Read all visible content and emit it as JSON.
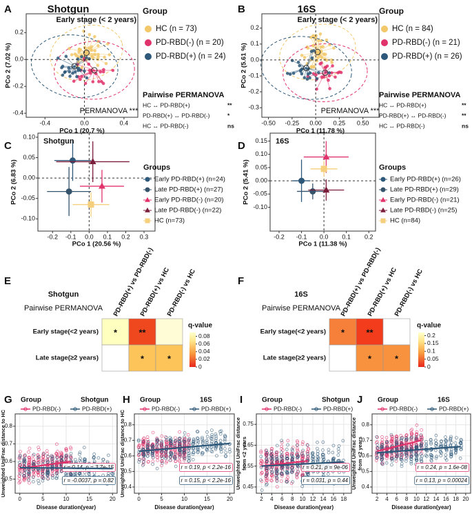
{
  "pcoa": [
    {
      "letter": "A",
      "title": "Shotgun",
      "subtitle": "Early stage (< 2 years)",
      "xlabel": "PCo 1 (20.7 %)",
      "ylabel": "PCo 2 (7.02 %)",
      "xlim": [
        -0.59,
        0.54
      ],
      "ylim": [
        -0.43,
        0.34
      ],
      "xticks": [
        -0.4,
        {
          "value": 0,
          "label": "0.0"
        },
        0.4
      ],
      "yticks": [
        0.2,
        {
          "value": 0,
          "label": "0.0"
        },
        -0.2,
        -0.4
      ],
      "legend_title": "Group",
      "groups": [
        {
          "name": "HC (n = 73)",
          "color": "#f2c86b"
        },
        {
          "name": "PD-RBD(-) (n = 20)",
          "color": "#e0336b"
        },
        {
          "name": "PD-RBD(+) (n = 24)",
          "color": "#2d5879"
        }
      ],
      "permanova": "PERMANOVA ***",
      "pairwise_title": "Pairwise PERMANOVA",
      "pairwise": [
        {
          "pair": "HC ↔ PD-RBD(+)",
          "sig": "**"
        },
        {
          "pair": "PD-RBD(+) ↔ PD-RBD(-)",
          "sig": "*"
        },
        {
          "pair": "HC ↔ PD-RBD(-)",
          "sig": "ns"
        }
      ]
    },
    {
      "letter": "B",
      "title": "16S",
      "subtitle": "Early stage (< 2 years)",
      "xlabel": "PCo 1 (11.78 %)",
      "ylabel": "PCo 2 (5.61 %)",
      "xlim": [
        -0.57,
        0.67
      ],
      "ylim": [
        -0.36,
        0.29
      ],
      "xticks": [
        {
          "value": -0.5,
          "label": "-0.50"
        },
        -0.25,
        {
          "value": 0,
          "label": "0.00"
        },
        0.25,
        {
          "value": 0.5,
          "label": "0.50"
        }
      ],
      "yticks": [
        0.2,
        0.1,
        {
          "value": 0,
          "label": "0.0"
        },
        -0.1,
        -0.2,
        -0.3
      ],
      "legend_title": "Group",
      "groups": [
        {
          "name": "HC (n = 84)",
          "color": "#f2c86b"
        },
        {
          "name": "PD-RBD(-) (n = 21)",
          "color": "#e0336b"
        },
        {
          "name": "PD-RBD(+) (n = 26)",
          "color": "#2d5879"
        }
      ],
      "permanova": "PERMANOVA ***",
      "pairwise_title": "Pairwise PERMANOVA",
      "pairwise": [
        {
          "pair": "HC ↔ PD-RBD(+)",
          "sig": "**"
        },
        {
          "pair": "PD-RBD(+) ↔ PD-RBD(-)",
          "sig": "**"
        },
        {
          "pair": "HC ↔ PD-RBD(-)",
          "sig": "ns"
        }
      ]
    }
  ],
  "centroids": [
    {
      "letter": "C",
      "title": "Shotgun",
      "xlabel": "PCo 1 (20.56 %)",
      "ylabel": "PCo 2 (6.83 %)",
      "xlim": [
        -0.28,
        0.36
      ],
      "ylim": [
        -0.13,
        0.11
      ],
      "xticks": [
        -0.2,
        -0.1,
        {
          "value": 0,
          "label": "0.0"
        },
        0.1,
        0.2,
        0.3
      ],
      "yticks": [
        {
          "value": 0.1,
          "label": "0.10"
        },
        0.05,
        {
          "value": 0,
          "label": "0.00"
        },
        -0.05,
        {
          "value": -0.1,
          "label": "-0.10"
        }
      ],
      "legend_title": "Groups",
      "series": [
        {
          "name": "Early PD-RBD(+) (n=24)",
          "color": "#2d5879",
          "shape": "circle",
          "x": -0.09,
          "y": 0.043,
          "xerr": 0.1,
          "yerr": 0.05
        },
        {
          "name": "Late PD-RBD(+) (n=27)",
          "color": "#35536b",
          "shape": "circle",
          "x": -0.11,
          "y": -0.033,
          "xerr": 0.12,
          "yerr": 0.06
        },
        {
          "name": "Early PD-RBD(-) (n=20)",
          "color": "#e0336b",
          "shape": "triangle",
          "x": 0.07,
          "y": -0.02,
          "xerr": 0.12,
          "yerr": 0.04
        },
        {
          "name": "Late PD-RBD(-) (n=22)",
          "color": "#7b1e3c",
          "shape": "triangle",
          "x": 0.02,
          "y": 0.04,
          "xerr": 0.2,
          "yerr": 0.05
        },
        {
          "name": "HC (n=73)",
          "color": "#f5cf7c",
          "shape": "square",
          "x": 0.01,
          "y": -0.065,
          "xerr": 0.1,
          "yerr": 0.03
        }
      ]
    },
    {
      "letter": "D",
      "title": "16S",
      "xlabel": "PCo 1 (11.38 %)",
      "ylabel": "PCo 2 (5.41 %)",
      "xlim": [
        -0.24,
        0.23
      ],
      "ylim": [
        -0.19,
        0.18
      ],
      "xticks": [
        -0.2,
        -0.1,
        {
          "value": 0,
          "label": "0.0"
        },
        0.1,
        0.2
      ],
      "yticks": [
        0.15,
        {
          "value": 0.1,
          "label": "0.10"
        },
        0.05,
        {
          "value": 0,
          "label": "0.00"
        },
        -0.05,
        {
          "value": -0.1,
          "label": "-0.10"
        }
      ],
      "legend_title": "Groups",
      "series": [
        {
          "name": "Early PD-RBD(+) (n=26)",
          "color": "#2d5879",
          "shape": "circle",
          "x": -0.1,
          "y": 0.0,
          "xerr": 0.04,
          "yerr": 0.08
        },
        {
          "name": "Late PD-RBD(+) (n=29)",
          "color": "#35536b",
          "shape": "circle",
          "x": -0.05,
          "y": -0.04,
          "xerr": 0.07,
          "yerr": 0.03
        },
        {
          "name": "Early PD-RBD(-) (n=21)",
          "color": "#e0336b",
          "shape": "triangle",
          "x": 0.01,
          "y": 0.09,
          "xerr": 0.1,
          "yerr": 0.06
        },
        {
          "name": "Late PD-RBD(-) (n=25)",
          "color": "#7b1e3c",
          "shape": "triangle",
          "x": 0.01,
          "y": -0.035,
          "xerr": 0.08,
          "yerr": 0.04
        },
        {
          "name": "HC (n=84)",
          "color": "#f5cf7c",
          "shape": "square",
          "x": 0.0,
          "y": 0.045,
          "xerr": 0.06,
          "yerr": 0.03
        }
      ]
    }
  ],
  "heatmaps": [
    {
      "letter": "E",
      "title": "Shotgun",
      "subtitle": "Pairwise PERMANOVA",
      "columns": [
        "PD-RBD(+) vs PD-RBD(-)",
        "PD-RBD(+) vs HC",
        "PD-RBD(-) vs HC"
      ],
      "rows": [
        "Early stage(<2 years)",
        "Late stage(≥2 years)"
      ],
      "cells": [
        [
          "*",
          "**",
          null
        ],
        [
          null,
          "*",
          "*"
        ]
      ],
      "colors": [
        [
          "#ffffbf",
          "#f0481e",
          "#fffcd6"
        ],
        [
          "#ffffff",
          "#fdc45a",
          "#fdc45a"
        ]
      ],
      "legend_title": "q-value",
      "legend_lim": [
        0,
        0.09
      ],
      "legend_ticks": [
        0.08,
        0.06,
        0.04,
        0.02,
        0
      ]
    },
    {
      "letter": "F",
      "title": "16S",
      "subtitle": "Pairwise PERMANOVA",
      "columns": [
        "PD-RBD(+) vs PD-RBD(-)",
        "PD-RBD(+) vs HC",
        "PD-RBD(-) vs HC"
      ],
      "rows": [
        "Early stage(<2 years)",
        "Late stage(≥2 years)"
      ],
      "cells": [
        [
          "*",
          "**",
          null
        ],
        [
          null,
          "*",
          "*"
        ]
      ],
      "colors": [
        [
          "#f6803a",
          "#f23c1c",
          "#ffffff"
        ],
        [
          "#ffffff",
          "#f8923f",
          "#f8923f"
        ]
      ],
      "legend_title": "q-value",
      "legend_lim": [
        0,
        0.22
      ],
      "legend_ticks": [
        0.2,
        0.15,
        0.1,
        0.05,
        0
      ]
    }
  ],
  "trends": [
    {
      "letter": "G",
      "legend_title": "Group",
      "title": "Shotgun",
      "ylabel": [
        "Unweighted UniFrac distance to HC"
      ],
      "xlabel": "Disease duration(year)",
      "xlim": [
        -1,
        21
      ],
      "ylim": [
        0.42,
        0.87
      ],
      "xticks": [
        0,
        5,
        10,
        15,
        20
      ],
      "yticks": [
        0.5,
        0.6,
        0.7,
        0.8
      ],
      "series": [
        {
          "name": "PD-RBD(-)",
          "color": "#e0336b",
          "fit": {
            "x": [
              0,
              11
            ],
            "y": [
              0.56,
              0.6
            ]
          },
          "stat": "r = 0.14, p = 3.7e-15"
        },
        {
          "name": "PD-RBD(+)",
          "color": "#2d5879",
          "fit": {
            "x": [
              0,
              20
            ],
            "y": [
              0.565,
              0.56
            ]
          },
          "stat": "r = -0.0037, p = 0.82"
        }
      ]
    },
    {
      "letter": "H",
      "legend_title": "Group",
      "title": "16S",
      "ylabel": [
        "Unweighted UniFrac distance to HC"
      ],
      "xlabel": "Disease duration(year)",
      "xlim": [
        -1,
        21
      ],
      "ylim": [
        0.36,
        0.87
      ],
      "xticks": [
        0,
        5,
        10,
        15,
        20
      ],
      "yticks": [
        0.4,
        0.5,
        0.6,
        0.7,
        0.8
      ],
      "series": [
        {
          "name": "PD-RBD(-)",
          "color": "#e0336b",
          "fit": {
            "x": [
              0,
              11
            ],
            "y": [
              0.63,
              0.66
            ]
          },
          "stat": "r = 0.19, p < 2.2e-16"
        },
        {
          "name": "PD-RBD(+)",
          "color": "#2d5879",
          "fit": {
            "x": [
              0,
              20
            ],
            "y": [
              0.63,
              0.68
            ]
          },
          "stat": "r = 0.15, p < 2.2e-16"
        }
      ]
    },
    {
      "letter": "I",
      "legend_title": "Group",
      "title": "Shotgun",
      "ylabel": [
        "Unweighted UniFrac distance",
        "from <2 years"
      ],
      "xlabel": "Disease duration(year)",
      "xlim": [
        1,
        19.5
      ],
      "ylim": [
        0.42,
        0.8
      ],
      "xticks": [
        2,
        4,
        6,
        8,
        10,
        12,
        14,
        16,
        18
      ],
      "yticks": [
        0.45,
        0.55,
        0.65,
        0.75
      ],
      "series": [
        {
          "name": "PD-RBD(-)",
          "color": "#e0336b",
          "fit": {
            "x": [
              2,
              11
            ],
            "y": [
              0.55,
              0.575
            ]
          },
          "stat": "r = 0.21, p = 9e-06"
        },
        {
          "name": "PD-RBD(+)",
          "color": "#2d5879",
          "fit": {
            "x": [
              2,
              18
            ],
            "y": [
              0.55,
              0.57
            ]
          },
          "stat": "r = 0.031, p = 0.44"
        }
      ]
    },
    {
      "letter": "J",
      "legend_title": "Group",
      "title": "16S",
      "ylabel": [
        "Unweighted UniFrac distance",
        "from <2 years"
      ],
      "xlabel": "Disease duration(year)",
      "xlim": [
        1,
        21
      ],
      "ylim": [
        0.36,
        0.87
      ],
      "xticks": [
        2,
        4,
        6,
        8,
        10,
        12,
        14,
        16,
        18,
        20
      ],
      "yticks": [
        0.4,
        0.5,
        0.6,
        0.7,
        0.8
      ],
      "series": [
        {
          "name": "PD-RBD(-)",
          "color": "#e0336b",
          "fit": {
            "x": [
              2,
              11
            ],
            "y": [
              0.63,
              0.7
            ]
          },
          "stat": "r = 0.24, p = 1.6e-08"
        },
        {
          "name": "PD-RBD(+)",
          "color": "#2d5879",
          "fit": {
            "x": [
              2,
              19
            ],
            "y": [
              0.62,
              0.66
            ]
          },
          "stat": "r = 0.13, p = 0.00024"
        }
      ]
    }
  ]
}
